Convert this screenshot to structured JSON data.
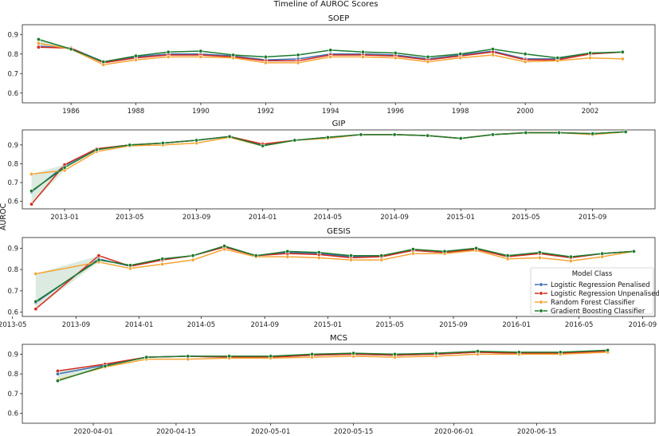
{
  "suptitle": "Timeline of AUROC Scores",
  "ylabel": "AUROC",
  "legend": {
    "title": "Model Class",
    "entries": [
      "Logistic Regression Penalised",
      "Logistic Regression Unpenalised",
      "Random Forest Classifier",
      "Gradient Boosting Classifier"
    ],
    "placement": "right (GESIS panel)"
  },
  "colors": {
    "Logistic Regression Penalised": "#3c6eb4",
    "Logistic Regression Unpenalised": "#d62a1e",
    "Random Forest Classifier": "#f6a434",
    "Gradient Boosting Classifier": "#1b7a2e"
  },
  "chart_data": [
    {
      "type": "line",
      "title": "SOEP",
      "x_type": "year",
      "xlim": [
        1984.5,
        2004
      ],
      "ylim": [
        0.55,
        0.95
      ],
      "yticks": [
        0.6,
        0.7,
        0.8,
        0.9
      ],
      "xticks": [
        1986,
        1988,
        1990,
        1992,
        1994,
        1996,
        1998,
        2000,
        2002
      ],
      "x": [
        1985,
        1986,
        1987,
        1988,
        1989,
        1990,
        1991,
        1992,
        1993,
        1994,
        1995,
        1996,
        1997,
        1998,
        1999,
        2000,
        2001,
        2002,
        2003
      ],
      "series": [
        {
          "name": "Logistic Regression Penalised",
          "values": [
            0.84,
            0.83,
            0.76,
            0.785,
            0.8,
            0.8,
            0.79,
            0.77,
            0.775,
            0.8,
            0.8,
            0.795,
            0.775,
            0.795,
            0.815,
            0.775,
            0.775,
            0.8,
            0.81
          ]
        },
        {
          "name": "Logistic Regression Unpenalised",
          "values": [
            0.835,
            0.83,
            0.755,
            0.78,
            0.795,
            0.795,
            0.785,
            0.765,
            0.765,
            0.795,
            0.795,
            0.79,
            0.77,
            0.79,
            0.81,
            0.77,
            0.77,
            0.8,
            0.81
          ]
        },
        {
          "name": "Random Forest Classifier",
          "values": [
            0.855,
            0.825,
            0.745,
            0.77,
            0.785,
            0.785,
            0.78,
            0.755,
            0.755,
            0.785,
            0.785,
            0.78,
            0.76,
            0.78,
            0.795,
            0.76,
            0.765,
            0.78,
            0.775
          ]
        },
        {
          "name": "Gradient Boosting Classifier",
          "values": [
            0.875,
            0.825,
            0.76,
            0.79,
            0.81,
            0.815,
            0.795,
            0.785,
            0.795,
            0.82,
            0.81,
            0.805,
            0.785,
            0.8,
            0.825,
            0.8,
            0.78,
            0.805,
            0.81
          ]
        }
      ]
    },
    {
      "type": "line",
      "title": "GIP",
      "x_type": "date",
      "xlim": [
        "2012-10-15",
        "2015-12-25"
      ],
      "ylim": [
        0.56,
        0.98
      ],
      "yticks": [
        0.6,
        0.7,
        0.8,
        0.9
      ],
      "xticks": [
        "2013-01",
        "2013-05",
        "2013-09",
        "2014-01",
        "2014-05",
        "2014-09",
        "2015-01",
        "2015-05",
        "2015-09"
      ],
      "x": [
        "2012-11-01",
        "2013-01-01",
        "2013-03-01",
        "2013-05-01",
        "2013-07-01",
        "2013-09-01",
        "2013-11-01",
        "2014-01-01",
        "2014-03-01",
        "2014-05-01",
        "2014-07-01",
        "2014-09-01",
        "2014-11-01",
        "2015-01-01",
        "2015-03-01",
        "2015-05-01",
        "2015-07-01",
        "2015-09-01",
        "2015-11-01"
      ],
      "series": [
        {
          "name": "Logistic Regression Penalised",
          "values": [
            0.65,
            0.79,
            0.88,
            0.9,
            0.91,
            0.925,
            0.945,
            0.9,
            0.925,
            0.94,
            0.955,
            0.955,
            0.95,
            0.935,
            0.955,
            0.965,
            0.965,
            0.96,
            0.97
          ]
        },
        {
          "name": "Logistic Regression Unpenalised",
          "values": [
            0.585,
            0.795,
            0.88,
            0.9,
            0.91,
            0.925,
            0.945,
            0.905,
            0.925,
            0.94,
            0.955,
            0.955,
            0.95,
            0.935,
            0.955,
            0.965,
            0.965,
            0.96,
            0.97
          ]
        },
        {
          "name": "Random Forest Classifier",
          "values": [
            0.745,
            0.765,
            0.865,
            0.895,
            0.9,
            0.91,
            0.94,
            0.895,
            0.925,
            0.935,
            0.955,
            0.955,
            0.95,
            0.935,
            0.955,
            0.965,
            0.965,
            0.955,
            0.97
          ]
        },
        {
          "name": "Gradient Boosting Classifier",
          "values": [
            0.655,
            0.78,
            0.875,
            0.9,
            0.91,
            0.925,
            0.945,
            0.895,
            0.925,
            0.94,
            0.955,
            0.955,
            0.95,
            0.935,
            0.955,
            0.965,
            0.965,
            0.96,
            0.97
          ]
        }
      ]
    },
    {
      "type": "line",
      "title": "GESIS",
      "x_type": "date",
      "xlim": [
        "2013-05-20",
        "2016-09-25"
      ],
      "ylim": [
        0.58,
        0.95
      ],
      "yticks": [
        0.6,
        0.7,
        0.8,
        0.9
      ],
      "xticks": [
        "2013-05",
        "2013-09",
        "2014-01",
        "2014-05",
        "2014-09",
        "2015-01",
        "2015-05",
        "2015-09",
        "2016-01",
        "2016-05",
        "2016-09"
      ],
      "x": [
        "2013-06-15",
        "2013-10-15",
        "2013-12-15",
        "2014-02-15",
        "2014-04-15",
        "2014-06-15",
        "2014-08-15",
        "2014-10-15",
        "2014-12-15",
        "2015-02-15",
        "2015-04-15",
        "2015-06-15",
        "2015-08-15",
        "2015-10-15",
        "2015-12-15",
        "2016-02-15",
        "2016-04-15",
        "2016-06-15",
        "2016-08-15"
      ],
      "series": [
        {
          "name": "Logistic Regression Penalised",
          "values": [
            0.645,
            0.85,
            0.815,
            0.845,
            0.865,
            0.905,
            0.865,
            0.88,
            0.875,
            0.86,
            0.86,
            0.89,
            0.88,
            0.895,
            0.865,
            0.875,
            0.855,
            0.875,
            0.885
          ]
        },
        {
          "name": "Logistic Regression Unpenalised",
          "values": [
            0.615,
            0.865,
            0.815,
            0.845,
            0.865,
            0.905,
            0.865,
            0.875,
            0.87,
            0.855,
            0.86,
            0.89,
            0.88,
            0.895,
            0.86,
            0.875,
            0.855,
            0.875,
            0.885
          ]
        },
        {
          "name": "Random Forest Classifier",
          "values": [
            0.78,
            0.835,
            0.805,
            0.825,
            0.845,
            0.895,
            0.86,
            0.86,
            0.855,
            0.845,
            0.845,
            0.875,
            0.875,
            0.89,
            0.85,
            0.855,
            0.84,
            0.86,
            0.885
          ]
        },
        {
          "name": "Gradient Boosting Classifier",
          "values": [
            0.65,
            0.845,
            0.82,
            0.85,
            0.865,
            0.91,
            0.865,
            0.885,
            0.88,
            0.865,
            0.865,
            0.895,
            0.885,
            0.9,
            0.865,
            0.88,
            0.86,
            0.875,
            0.885
          ]
        }
      ]
    },
    {
      "type": "line",
      "title": "MCS",
      "x_type": "date",
      "xlim": [
        "2020-03-20",
        "2020-07-05"
      ],
      "ylim": [
        0.55,
        0.95
      ],
      "yticks": [
        0.6,
        0.7,
        0.8,
        0.9
      ],
      "xticks": [
        "2020-04-01",
        "2020-04-15",
        "2020-05-01",
        "2020-05-15",
        "2020-06-01",
        "2020-06-15"
      ],
      "x": [
        "2020-03-26",
        "2020-04-03",
        "2020-04-10",
        "2020-04-17",
        "2020-04-24",
        "2020-05-01",
        "2020-05-08",
        "2020-05-15",
        "2020-05-22",
        "2020-05-29",
        "2020-06-05",
        "2020-06-12",
        "2020-06-19",
        "2020-06-27"
      ],
      "series": [
        {
          "name": "Logistic Regression Penalised",
          "values": [
            0.8,
            0.845,
            0.885,
            0.89,
            0.885,
            0.885,
            0.895,
            0.9,
            0.895,
            0.9,
            0.91,
            0.905,
            0.905,
            0.915
          ]
        },
        {
          "name": "Logistic Regression Unpenalised",
          "values": [
            0.815,
            0.85,
            0.885,
            0.89,
            0.885,
            0.885,
            0.895,
            0.9,
            0.895,
            0.9,
            0.91,
            0.905,
            0.905,
            0.915
          ]
        },
        {
          "name": "Random Forest Classifier",
          "values": [
            0.77,
            0.835,
            0.875,
            0.875,
            0.88,
            0.88,
            0.885,
            0.89,
            0.885,
            0.89,
            0.9,
            0.9,
            0.9,
            0.91
          ]
        },
        {
          "name": "Gradient Boosting Classifier",
          "values": [
            0.765,
            0.84,
            0.885,
            0.89,
            0.89,
            0.89,
            0.9,
            0.905,
            0.9,
            0.905,
            0.915,
            0.91,
            0.91,
            0.92
          ]
        }
      ]
    }
  ]
}
